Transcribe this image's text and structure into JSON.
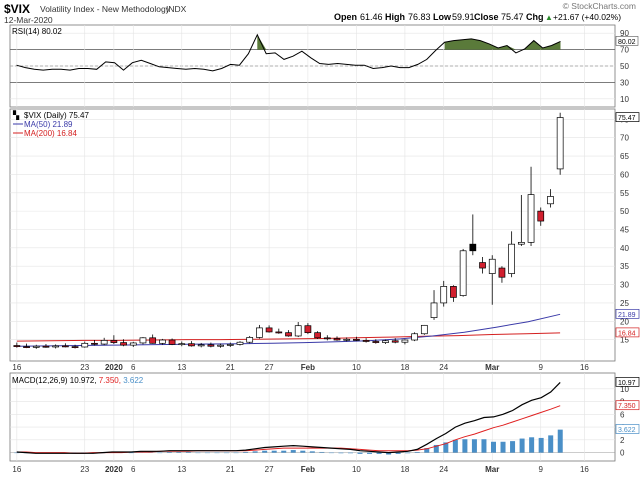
{
  "header": {
    "symbol": "$VIX",
    "name": "Volatility Index - New Methodology",
    "exchange": "INDX",
    "date": "12-Mar-2020",
    "open_label": "Open",
    "open": "61.46",
    "high_label": "High",
    "high": "76.83",
    "low_label": "Low",
    "low": "59.91",
    "close_label": "Close",
    "close": "75.47",
    "chg_label": "Chg",
    "chg": "+21.67 (+40.02%)",
    "chg_arrow": "▲",
    "watermark": "© StockCharts.com"
  },
  "colors": {
    "up_candle": "#ffffff",
    "down_candle": "#d11f2e",
    "black_candle": "#000000",
    "ma50": "#3a3aa8",
    "ma200": "#d42020",
    "macd_line": "#000000",
    "signal_line": "#e02020",
    "histogram": "#4a8fc7",
    "rsi_fill": "#5a7a3a",
    "grid": "#e4e4e4"
  },
  "chart_data": [
    {
      "type": "line",
      "panel": "rsi",
      "legend": "RSI(14) 80.02",
      "ylim": [
        0,
        100
      ],
      "ticks": [
        10,
        30,
        50,
        70,
        90
      ],
      "reference_lines": [
        30,
        50,
        70
      ],
      "last_value_label": "80.02",
      "values": [
        51,
        48,
        46,
        45,
        46,
        46,
        45,
        47,
        47,
        46,
        55,
        54,
        45,
        54,
        57,
        53,
        49,
        48,
        47,
        46,
        47,
        46,
        44,
        47,
        52,
        51,
        65,
        88,
        65,
        66,
        58,
        62,
        68,
        60,
        53,
        52,
        53,
        52,
        51,
        51,
        47,
        48,
        50,
        48,
        48,
        52,
        58,
        69,
        79,
        81,
        82,
        83,
        81,
        77,
        72,
        75,
        66,
        71,
        81,
        72,
        75,
        80
      ]
    },
    {
      "type": "candlestick",
      "panel": "price",
      "legend": "$VIX (Daily) 75.47",
      "ylim": [
        10,
        77
      ],
      "ticks": [
        15,
        20,
        25,
        30,
        35,
        40,
        45,
        50,
        55,
        60,
        65,
        70,
        75
      ],
      "last_close_label": "75.47",
      "candles": [
        {
          "o": 13.4,
          "h": 14.2,
          "l": 12.8,
          "c": 13.1
        },
        {
          "o": 13.1,
          "h": 13.9,
          "l": 12.7,
          "c": 12.9
        },
        {
          "o": 12.9,
          "h": 13.6,
          "l": 12.5,
          "c": 13.2
        },
        {
          "o": 13.2,
          "h": 13.8,
          "l": 12.8,
          "c": 13.0
        },
        {
          "o": 13.0,
          "h": 13.7,
          "l": 12.6,
          "c": 13.3
        },
        {
          "o": 13.3,
          "h": 14.0,
          "l": 12.9,
          "c": 13.1
        },
        {
          "o": 13.1,
          "h": 13.6,
          "l": 12.6,
          "c": 13.0
        },
        {
          "o": 13.0,
          "h": 14.5,
          "l": 12.8,
          "c": 14.0
        },
        {
          "o": 14.0,
          "h": 14.9,
          "l": 13.4,
          "c": 13.8
        },
        {
          "o": 13.8,
          "h": 15.5,
          "l": 13.5,
          "c": 14.8
        },
        {
          "o": 14.8,
          "h": 16.2,
          "l": 13.8,
          "c": 14.2
        },
        {
          "o": 14.2,
          "h": 15.1,
          "l": 13.2,
          "c": 13.5
        },
        {
          "o": 13.5,
          "h": 14.4,
          "l": 13.0,
          "c": 14.1
        },
        {
          "o": 14.1,
          "h": 15.7,
          "l": 13.7,
          "c": 15.5
        },
        {
          "o": 15.5,
          "h": 16.4,
          "l": 13.9,
          "c": 14.0
        },
        {
          "o": 14.0,
          "h": 15.2,
          "l": 13.6,
          "c": 14.9
        },
        {
          "o": 14.9,
          "h": 15.3,
          "l": 13.5,
          "c": 13.7
        },
        {
          "o": 13.7,
          "h": 14.5,
          "l": 13.2,
          "c": 13.9
        },
        {
          "o": 13.9,
          "h": 14.6,
          "l": 13.1,
          "c": 13.3
        },
        {
          "o": 13.3,
          "h": 14.1,
          "l": 12.9,
          "c": 13.6
        },
        {
          "o": 13.6,
          "h": 14.2,
          "l": 12.9,
          "c": 13.2
        },
        {
          "o": 13.2,
          "h": 13.9,
          "l": 12.8,
          "c": 13.5
        },
        {
          "o": 13.5,
          "h": 14.2,
          "l": 13.0,
          "c": 13.7
        },
        {
          "o": 13.7,
          "h": 14.6,
          "l": 13.4,
          "c": 14.3
        },
        {
          "o": 14.3,
          "h": 16.0,
          "l": 14.0,
          "c": 15.6
        },
        {
          "o": 15.6,
          "h": 19.0,
          "l": 15.3,
          "c": 18.2
        },
        {
          "o": 18.2,
          "h": 18.9,
          "l": 16.9,
          "c": 17.1
        },
        {
          "o": 17.1,
          "h": 18.0,
          "l": 16.6,
          "c": 16.9
        },
        {
          "o": 16.9,
          "h": 17.6,
          "l": 15.8,
          "c": 16.0
        },
        {
          "o": 16.0,
          "h": 19.8,
          "l": 15.7,
          "c": 18.8
        },
        {
          "o": 18.8,
          "h": 19.5,
          "l": 16.5,
          "c": 16.9
        },
        {
          "o": 16.9,
          "h": 17.3,
          "l": 15.2,
          "c": 15.5
        },
        {
          "o": 15.5,
          "h": 16.2,
          "l": 14.8,
          "c": 15.3
        },
        {
          "o": 15.3,
          "h": 15.9,
          "l": 14.7,
          "c": 14.9
        },
        {
          "o": 14.9,
          "h": 15.6,
          "l": 14.5,
          "c": 15.1
        },
        {
          "o": 15.1,
          "h": 15.8,
          "l": 14.6,
          "c": 14.8
        },
        {
          "o": 14.8,
          "h": 15.4,
          "l": 14.2,
          "c": 14.5
        },
        {
          "o": 14.5,
          "h": 15.1,
          "l": 13.9,
          "c": 14.2
        },
        {
          "o": 14.2,
          "h": 15.0,
          "l": 13.8,
          "c": 14.7
        },
        {
          "o": 14.7,
          "h": 15.4,
          "l": 14.0,
          "c": 14.3
        },
        {
          "o": 14.3,
          "h": 15.1,
          "l": 13.7,
          "c": 14.9
        },
        {
          "o": 14.9,
          "h": 17.0,
          "l": 14.6,
          "c": 16.6
        },
        {
          "o": 16.6,
          "h": 19.0,
          "l": 16.3,
          "c": 18.9
        },
        {
          "o": 21.0,
          "h": 28.5,
          "l": 20.4,
          "c": 25.0
        },
        {
          "o": 25.0,
          "h": 31.0,
          "l": 24.0,
          "c": 29.5
        },
        {
          "o": 29.5,
          "h": 29.8,
          "l": 25.3,
          "c": 26.5
        },
        {
          "o": 27.0,
          "h": 39.7,
          "l": 26.7,
          "c": 39.2
        },
        {
          "o": 39.2,
          "h": 49.1,
          "l": 38.0,
          "c": 41.0
        },
        {
          "o": 36.0,
          "h": 37.5,
          "l": 33.0,
          "c": 34.5
        },
        {
          "o": 33.0,
          "h": 38.0,
          "l": 24.5,
          "c": 36.9
        },
        {
          "o": 34.5,
          "h": 35.0,
          "l": 30.5,
          "c": 32.0
        },
        {
          "o": 33.0,
          "h": 44.5,
          "l": 32.0,
          "c": 41.0
        },
        {
          "o": 41.0,
          "h": 54.4,
          "l": 40.5,
          "c": 41.5
        },
        {
          "o": 41.5,
          "h": 62.1,
          "l": 40.5,
          "c": 54.5
        },
        {
          "o": 50.0,
          "h": 51.0,
          "l": 46.0,
          "c": 47.3
        },
        {
          "o": 52.0,
          "h": 56.0,
          "l": 51.0,
          "c": 54.0
        },
        {
          "o": 61.5,
          "h": 76.8,
          "l": 59.9,
          "c": 75.5
        }
      ],
      "ma50": {
        "label": "MA(50) 21.89",
        "last": "21.89",
        "values": [
          13.2,
          13.3,
          13.4,
          13.5,
          13.6,
          13.7,
          13.8,
          13.9,
          14.0,
          14.2,
          14.4,
          14.7,
          15.2,
          16.0,
          17.0,
          18.4,
          19.9,
          21.9
        ]
      },
      "ma200": {
        "label": "MA(200) 16.84",
        "last": "16.84",
        "values": [
          14.6,
          14.7,
          14.8,
          14.8,
          14.9,
          15.0,
          15.0,
          15.1,
          15.2,
          15.3,
          15.5,
          15.7,
          15.9,
          16.1,
          16.4,
          16.6,
          16.84
        ]
      },
      "x_ticks": [
        "16",
        "23",
        "2020",
        "6",
        "13",
        "21",
        "27",
        "Feb",
        "10",
        "18",
        "24",
        "Mar",
        "9",
        "16"
      ]
    },
    {
      "type": "line",
      "panel": "macd",
      "legend": "MACD(12,26,9) 10.972, 7.350, 3.622",
      "legend_macd": "MACD(12,26,9) 10.972,",
      "legend_signal": " 7.350,",
      "legend_hist": " 3.622",
      "ylim": [
        -1,
        12
      ],
      "ticks": [
        0,
        2,
        4,
        6,
        8,
        10
      ],
      "last_labels": [
        "10.97",
        "7.350",
        "3.622"
      ],
      "macd": [
        0.1,
        0.0,
        -0.1,
        -0.1,
        -0.1,
        -0.1,
        -0.1,
        -0.1,
        -0.1,
        0.0,
        0.1,
        0.1,
        0.1,
        0.2,
        0.2,
        0.2,
        0.3,
        0.3,
        0.3,
        0.3,
        0.3,
        0.3,
        0.3,
        0.3,
        0.4,
        0.6,
        0.8,
        0.9,
        1.0,
        1.1,
        1.0,
        0.9,
        0.8,
        0.7,
        0.6,
        0.5,
        0.3,
        0.2,
        0.1,
        0.0,
        0.1,
        0.2,
        0.5,
        1.3,
        2.2,
        3.0,
        4.0,
        4.6,
        5.0,
        5.5,
        5.6,
        6.0,
        6.6,
        7.5,
        8.2,
        8.6,
        9.5,
        11.0
      ],
      "signal": [
        0.1,
        0.1,
        0.0,
        0.0,
        0.0,
        0.0,
        -0.1,
        -0.1,
        0.0,
        0.0,
        0.0,
        0.0,
        0.1,
        0.1,
        0.1,
        0.2,
        0.2,
        0.2,
        0.2,
        0.3,
        0.3,
        0.3,
        0.3,
        0.3,
        0.3,
        0.4,
        0.5,
        0.6,
        0.7,
        0.7,
        0.7,
        0.7,
        0.7,
        0.7,
        0.7,
        0.6,
        0.5,
        0.4,
        0.3,
        0.3,
        0.3,
        0.3,
        0.4,
        0.6,
        1.0,
        1.4,
        2.0,
        2.5,
        2.9,
        3.4,
        3.9,
        4.3,
        4.8,
        5.3,
        5.8,
        6.3,
        6.8,
        7.35
      ],
      "hist": [
        0.0,
        0.0,
        -0.1,
        -0.1,
        -0.1,
        -0.1,
        0.0,
        0.0,
        -0.1,
        0.0,
        0.1,
        0.1,
        0.0,
        0.1,
        0.1,
        0.0,
        0.1,
        0.1,
        0.1,
        0.0,
        0.0,
        0.0,
        0.0,
        0.0,
        0.1,
        0.2,
        0.3,
        0.3,
        0.3,
        0.4,
        0.3,
        0.2,
        0.1,
        0.0,
        -0.1,
        -0.1,
        -0.2,
        -0.2,
        -0.2,
        -0.3,
        -0.2,
        -0.1,
        0.1,
        0.7,
        1.2,
        1.6,
        2.0,
        2.1,
        2.1,
        2.1,
        1.7,
        1.7,
        1.8,
        2.2,
        2.4,
        2.3,
        2.7,
        3.6
      ]
    }
  ]
}
